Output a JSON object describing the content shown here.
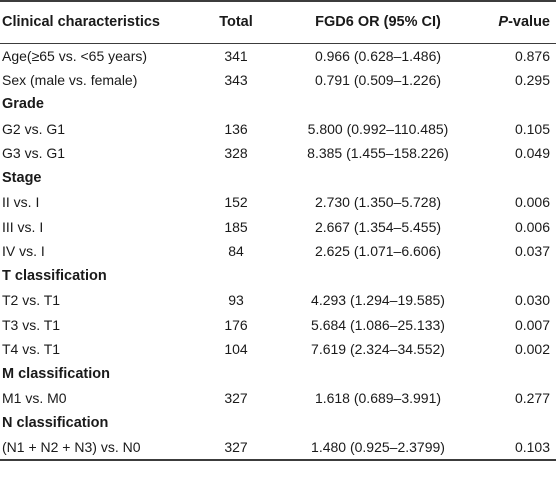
{
  "header": {
    "col1": "Clinical characteristics",
    "col2": "Total",
    "col3": "FGD6 OR (95% CI)",
    "col4_italic": "P",
    "col4_rest": "-value"
  },
  "rows": [
    {
      "type": "data",
      "label": "Age(≥65 vs. <65 years)",
      "total": "341",
      "or": "0.966 (0.628–1.486)",
      "p": "0.876"
    },
    {
      "type": "data",
      "label": "Sex (male vs. female)",
      "total": "343",
      "or": "0.791 (0.509–1.226)",
      "p": "0.295"
    },
    {
      "type": "section",
      "label": "Grade"
    },
    {
      "type": "data",
      "label": "G2 vs. G1",
      "total": "136",
      "or": "5.800 (0.992–110.485)",
      "p": "0.105"
    },
    {
      "type": "data",
      "label": "G3 vs. G1",
      "total": "328",
      "or": "8.385 (1.455–158.226)",
      "p": "0.049"
    },
    {
      "type": "section",
      "label": "Stage"
    },
    {
      "type": "data",
      "label": "II vs. I",
      "total": "152",
      "or": "2.730 (1.350–5.728)",
      "p": "0.006"
    },
    {
      "type": "data",
      "label": "III vs. I",
      "total": "185",
      "or": "2.667 (1.354–5.455)",
      "p": "0.006"
    },
    {
      "type": "data",
      "label": "IV vs. I",
      "total": "84",
      "or": "2.625 (1.071–6.606)",
      "p": "0.037"
    },
    {
      "type": "section",
      "label": "T classification"
    },
    {
      "type": "data",
      "label": "T2 vs. T1",
      "total": "93",
      "or": "4.293 (1.294–19.585)",
      "p": "0.030"
    },
    {
      "type": "data",
      "label": "T3 vs. T1",
      "total": "176",
      "or": "5.684 (1.086–25.133)",
      "p": "0.007"
    },
    {
      "type": "data",
      "label": "T4 vs. T1",
      "total": "104",
      "or": "7.619 (2.324–34.552)",
      "p": "0.002"
    },
    {
      "type": "section",
      "label": "M classification"
    },
    {
      "type": "data",
      "label": "M1 vs. M0",
      "total": "327",
      "or": "1.618 (0.689–3.991)",
      "p": "0.277"
    },
    {
      "type": "section",
      "label": "N classification"
    },
    {
      "type": "data",
      "label": "(N1 + N2 + N3) vs. N0",
      "total": "327",
      "or": "1.480 (0.925–2.3799)",
      "p": "0.103"
    }
  ]
}
